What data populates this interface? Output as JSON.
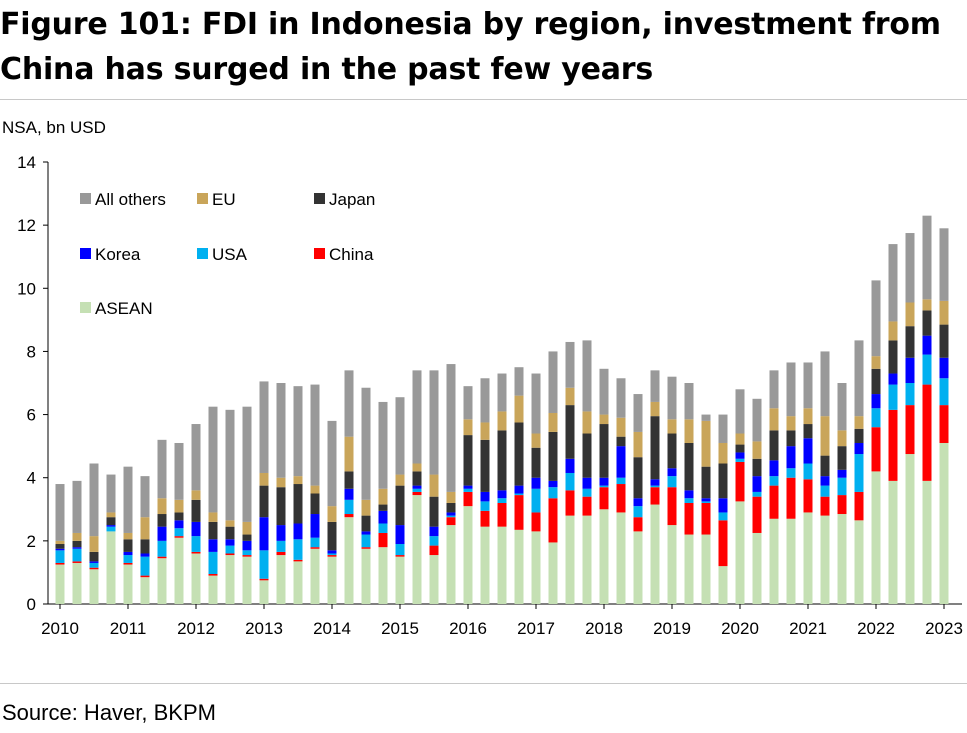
{
  "header": {
    "title_line1": "Figure 101: FDI in Indonesia by region, investment from",
    "title_line2": "China has surged in the past few years"
  },
  "footer": {
    "source": "Source: Haver, BKPM"
  },
  "colors": {
    "ASEAN": "#c5e0b4",
    "China": "#ff0000",
    "USA": "#00b0f0",
    "Korea": "#0000ff",
    "Japan": "#333333",
    "EU": "#c9a55a",
    "All others": "#999999"
  },
  "chart_data": {
    "type": "bar",
    "stacked": true,
    "title": "",
    "ylabel": "NSA, bn USD",
    "xlabel": "",
    "ylim": [
      0,
      14
    ],
    "yticks": [
      0,
      2,
      4,
      6,
      8,
      10,
      12,
      14
    ],
    "xtick_labels": [
      "2010",
      "2011",
      "2012",
      "2013",
      "2014",
      "2015",
      "2016",
      "2017",
      "2018",
      "2019",
      "2020",
      "2021",
      "2022",
      "2023"
    ],
    "bars_per_year": 4,
    "grid": false,
    "legend": {
      "placement": "top-left",
      "order": [
        "All others",
        "EU",
        "Japan",
        "Korea",
        "USA",
        "China",
        "ASEAN"
      ]
    },
    "stack_order": [
      "ASEAN",
      "China",
      "USA",
      "Korea",
      "Japan",
      "EU",
      "All others"
    ],
    "categories": [
      "2010Q1",
      "2010Q2",
      "2010Q3",
      "2010Q4",
      "2011Q1",
      "2011Q2",
      "2011Q3",
      "2011Q4",
      "2012Q1",
      "2012Q2",
      "2012Q3",
      "2012Q4",
      "2013Q1",
      "2013Q2",
      "2013Q3",
      "2013Q4",
      "2014Q1",
      "2014Q2",
      "2014Q3",
      "2014Q4",
      "2015Q1",
      "2015Q2",
      "2015Q3",
      "2015Q4",
      "2016Q1",
      "2016Q2",
      "2016Q3",
      "2016Q4",
      "2017Q1",
      "2017Q2",
      "2017Q3",
      "2017Q4",
      "2018Q1",
      "2018Q2",
      "2018Q3",
      "2018Q4",
      "2019Q1",
      "2019Q2",
      "2019Q3",
      "2019Q4",
      "2020Q1",
      "2020Q2",
      "2020Q3",
      "2020Q4",
      "2021Q1",
      "2021Q2",
      "2021Q3",
      "2021Q4",
      "2022Q1",
      "2022Q2",
      "2022Q3",
      "2022Q4",
      "2023Q1"
    ],
    "series": [
      {
        "name": "ASEAN",
        "values": [
          1.25,
          1.3,
          1.1,
          2.3,
          1.25,
          0.85,
          1.45,
          2.1,
          1.6,
          0.9,
          1.55,
          1.5,
          0.75,
          1.55,
          1.35,
          1.75,
          1.5,
          2.75,
          1.75,
          1.8,
          1.5,
          3.45,
          1.55,
          2.5,
          3.1,
          2.45,
          2.45,
          2.35,
          2.3,
          1.95,
          2.8,
          2.8,
          3.0,
          2.9,
          2.3,
          3.15,
          2.5,
          2.2,
          2.2,
          1.2,
          3.25,
          2.25,
          2.7,
          2.7,
          2.9,
          2.8,
          2.85,
          2.65,
          4.2,
          3.9,
          4.75,
          3.9,
          5.1
        ]
      },
      {
        "name": "China",
        "values": [
          0.05,
          0.05,
          0.05,
          0.0,
          0.05,
          0.05,
          0.05,
          0.05,
          0.05,
          0.05,
          0.05,
          0.05,
          0.05,
          0.1,
          0.05,
          0.05,
          0.05,
          0.1,
          0.05,
          0.45,
          0.05,
          0.1,
          0.3,
          0.25,
          0.45,
          0.5,
          0.75,
          1.1,
          0.6,
          1.4,
          0.8,
          0.6,
          0.7,
          0.9,
          0.45,
          0.55,
          1.2,
          1.0,
          1.0,
          1.45,
          1.25,
          1.15,
          1.05,
          1.3,
          1.05,
          0.6,
          0.6,
          0.9,
          1.4,
          2.25,
          1.55,
          3.05,
          1.2
        ]
      },
      {
        "name": "USA",
        "values": [
          0.4,
          0.4,
          0.15,
          0.15,
          0.25,
          0.6,
          0.5,
          0.25,
          0.5,
          0.7,
          0.25,
          0.15,
          0.9,
          0.35,
          0.65,
          0.3,
          0.05,
          0.45,
          0.4,
          0.3,
          0.35,
          0.1,
          0.3,
          0.05,
          0.1,
          0.3,
          0.15,
          0.05,
          0.75,
          0.35,
          0.55,
          0.25,
          0.05,
          0.2,
          0.35,
          0.05,
          0.35,
          0.15,
          0.05,
          0.25,
          0.1,
          0.15,
          0.3,
          0.3,
          0.5,
          0.35,
          0.55,
          1.2,
          0.6,
          0.8,
          0.7,
          0.95,
          0.85
        ]
      },
      {
        "name": "Korea",
        "values": [
          0.05,
          0.05,
          0.05,
          0.05,
          0.1,
          0.1,
          0.45,
          0.25,
          0.45,
          0.4,
          0.2,
          0.3,
          1.05,
          0.5,
          0.5,
          0.75,
          0.1,
          0.35,
          0.1,
          0.4,
          0.6,
          0.1,
          0.3,
          0.1,
          0.1,
          0.3,
          0.25,
          0.25,
          0.35,
          0.2,
          0.45,
          0.35,
          0.25,
          1.0,
          0.25,
          0.2,
          0.25,
          0.25,
          0.1,
          0.45,
          0.2,
          0.5,
          0.5,
          0.7,
          0.8,
          0.3,
          0.25,
          0.35,
          0.45,
          0.35,
          0.8,
          0.6,
          0.65
        ]
      },
      {
        "name": "Japan",
        "values": [
          0.15,
          0.2,
          0.3,
          0.25,
          0.4,
          0.45,
          0.4,
          0.25,
          0.7,
          0.55,
          0.4,
          0.2,
          1.0,
          1.2,
          1.25,
          0.65,
          0.9,
          0.55,
          0.5,
          0.2,
          1.25,
          0.45,
          0.95,
          0.3,
          1.6,
          1.65,
          1.9,
          2.0,
          0.95,
          1.55,
          1.7,
          1.4,
          1.7,
          0.3,
          1.3,
          2.0,
          1.1,
          1.5,
          1.0,
          1.1,
          0.25,
          0.55,
          0.95,
          0.5,
          0.45,
          0.65,
          0.75,
          0.45,
          0.8,
          1.05,
          1.0,
          0.8,
          1.05
        ]
      },
      {
        "name": "EU",
        "values": [
          0.1,
          0.25,
          0.5,
          0.15,
          0.2,
          0.7,
          0.5,
          0.4,
          0.3,
          0.3,
          0.2,
          0.4,
          0.4,
          0.3,
          0.25,
          0.25,
          0.5,
          1.1,
          0.5,
          0.5,
          0.35,
          0.25,
          0.7,
          0.35,
          0.5,
          0.55,
          0.6,
          0.85,
          0.45,
          0.6,
          0.55,
          0.7,
          0.3,
          0.6,
          0.8,
          0.45,
          0.45,
          0.75,
          1.45,
          0.65,
          0.35,
          0.55,
          0.7,
          0.45,
          0.5,
          1.25,
          0.5,
          0.4,
          0.4,
          0.6,
          0.75,
          0.35,
          0.75
        ]
      },
      {
        "name": "All others",
        "values": [
          1.8,
          1.65,
          2.3,
          1.2,
          2.1,
          1.3,
          1.85,
          1.8,
          2.1,
          3.35,
          3.5,
          3.65,
          2.9,
          3.0,
          2.85,
          3.2,
          2.7,
          2.1,
          3.55,
          2.75,
          2.45,
          2.95,
          3.3,
          4.05,
          1.05,
          1.4,
          1.2,
          0.9,
          1.9,
          1.95,
          1.45,
          2.25,
          1.45,
          1.25,
          1.2,
          1.0,
          1.35,
          1.15,
          0.2,
          0.9,
          1.4,
          1.35,
          1.2,
          1.7,
          1.45,
          2.05,
          1.5,
          2.4,
          2.4,
          2.45,
          2.2,
          2.65,
          2.3
        ]
      }
    ]
  }
}
